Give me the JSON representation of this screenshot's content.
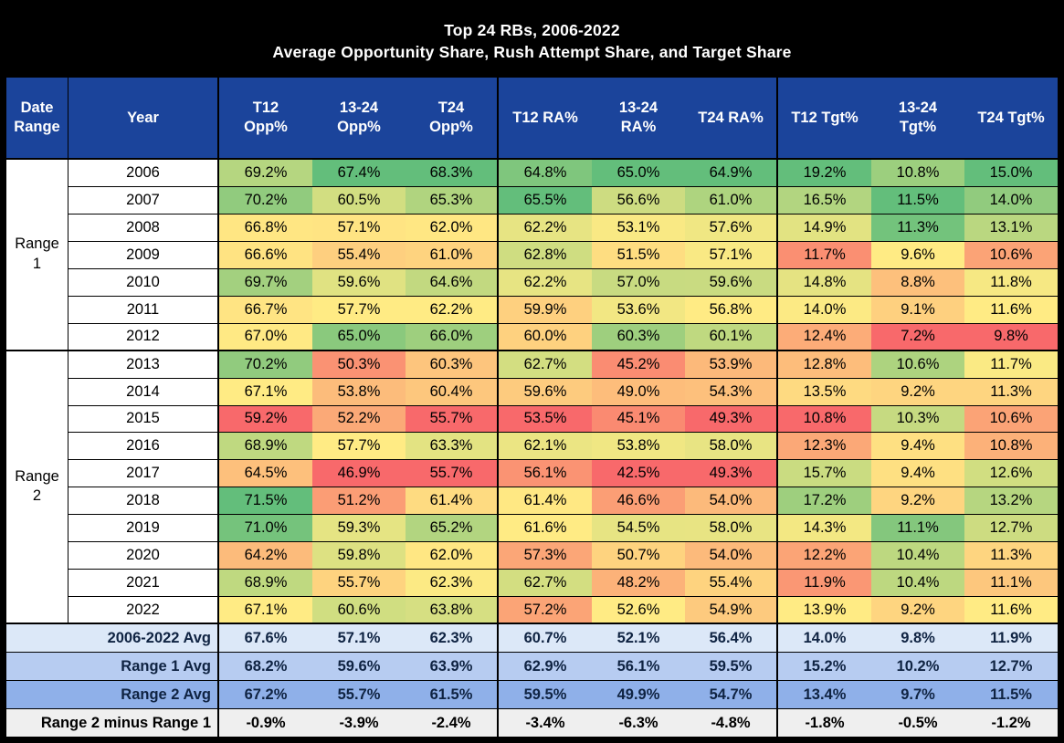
{
  "title": {
    "line1": "Top 24 RBs, 2006-2022",
    "line2": "Average Opportunity Share, Rush Attempt Share, and Target Share"
  },
  "chart_data": {
    "type": "heatmap-table",
    "columns_display": [
      "Date\nRange",
      "Year",
      "T12\nOpp%",
      "13-24\nOpp%",
      "T24\nOpp%",
      "T12 RA%",
      "13-24\nRA%",
      "T24 RA%",
      "T12 Tgt%",
      "13-24\nTgt%",
      "T24 Tgt%"
    ],
    "value_columns": [
      "T12 Opp%",
      "13-24 Opp%",
      "T24 Opp%",
      "T12 RA%",
      "13-24 RA%",
      "T24 RA%",
      "T12 Tgt%",
      "13-24 Tgt%",
      "T24 Tgt%"
    ],
    "unit": "%",
    "groups": [
      {
        "label": "Range 1",
        "label_display": "Range\n1",
        "rows": [
          {
            "year": "2006",
            "values": [
              69.2,
              67.4,
              68.3,
              64.8,
              65.0,
              64.9,
              19.2,
              10.8,
              15.0
            ]
          },
          {
            "year": "2007",
            "values": [
              70.2,
              60.5,
              65.3,
              65.5,
              56.6,
              61.0,
              16.5,
              11.5,
              14.0
            ]
          },
          {
            "year": "2008",
            "values": [
              66.8,
              57.1,
              62.0,
              62.2,
              53.1,
              57.6,
              14.9,
              11.3,
              13.1
            ]
          },
          {
            "year": "2009",
            "values": [
              66.6,
              55.4,
              61.0,
              62.8,
              51.5,
              57.1,
              11.7,
              9.6,
              10.6
            ]
          },
          {
            "year": "2010",
            "values": [
              69.7,
              59.6,
              64.6,
              62.2,
              57.0,
              59.6,
              14.8,
              8.8,
              11.8
            ]
          },
          {
            "year": "2011",
            "values": [
              66.7,
              57.7,
              62.2,
              59.9,
              53.6,
              56.8,
              14.0,
              9.1,
              11.6
            ]
          },
          {
            "year": "2012",
            "values": [
              67.0,
              65.0,
              66.0,
              60.0,
              60.3,
              60.1,
              12.4,
              7.2,
              9.8
            ]
          }
        ]
      },
      {
        "label": "Range 2",
        "label_display": "Range\n2",
        "rows": [
          {
            "year": "2013",
            "values": [
              70.2,
              50.3,
              60.3,
              62.7,
              45.2,
              53.9,
              12.8,
              10.6,
              11.7
            ]
          },
          {
            "year": "2014",
            "values": [
              67.1,
              53.8,
              60.4,
              59.6,
              49.0,
              54.3,
              13.5,
              9.2,
              11.3
            ]
          },
          {
            "year": "2015",
            "values": [
              59.2,
              52.2,
              55.7,
              53.5,
              45.1,
              49.3,
              10.8,
              10.3,
              10.6
            ]
          },
          {
            "year": "2016",
            "values": [
              68.9,
              57.7,
              63.3,
              62.1,
              53.8,
              58.0,
              12.3,
              9.4,
              10.8
            ]
          },
          {
            "year": "2017",
            "values": [
              64.5,
              46.9,
              55.7,
              56.1,
              42.5,
              49.3,
              15.7,
              9.4,
              12.6
            ]
          },
          {
            "year": "2018",
            "values": [
              71.5,
              51.2,
              61.4,
              61.4,
              46.6,
              54.0,
              17.2,
              9.2,
              13.2
            ]
          },
          {
            "year": "2019",
            "values": [
              71.0,
              59.3,
              65.2,
              61.6,
              54.5,
              58.0,
              14.3,
              11.1,
              12.7
            ]
          },
          {
            "year": "2020",
            "values": [
              64.2,
              59.8,
              62.0,
              57.3,
              50.7,
              54.0,
              12.2,
              10.4,
              11.3
            ]
          },
          {
            "year": "2021",
            "values": [
              68.9,
              55.7,
              62.3,
              62.7,
              48.2,
              55.4,
              11.9,
              10.4,
              11.1
            ]
          },
          {
            "year": "2022",
            "values": [
              67.1,
              60.6,
              63.8,
              57.2,
              52.6,
              54.9,
              13.9,
              9.2,
              11.6
            ]
          }
        ]
      }
    ],
    "summary_rows": [
      {
        "label": "2006-2022 Avg",
        "values": [
          67.6,
          57.1,
          62.3,
          60.7,
          52.1,
          56.4,
          14.0,
          9.8,
          11.9
        ]
      },
      {
        "label": "Range 1 Avg",
        "values": [
          68.2,
          59.6,
          63.9,
          62.9,
          56.1,
          59.5,
          15.2,
          10.2,
          12.7
        ]
      },
      {
        "label": "Range 2 Avg",
        "values": [
          67.2,
          55.7,
          61.5,
          59.5,
          49.9,
          54.7,
          13.4,
          9.7,
          11.5
        ]
      },
      {
        "label": "Range 2 minus Range 1",
        "values": [
          -0.9,
          -3.9,
          -2.4,
          -3.4,
          -6.3,
          -4.8,
          -1.8,
          -0.5,
          -1.2
        ]
      }
    ],
    "color_scale": {
      "applied": "per-column",
      "midpoint": "median",
      "min_color": "#F8696B",
      "mid_color": "#FFEB84",
      "max_color": "#63BE7B"
    }
  },
  "colors": {
    "title_bg": "#000000",
    "title_text": "#FFFFFF",
    "header_bg": "#1B449B",
    "header_text": "#FFFFFF",
    "border": "#000000",
    "row_bg": "#FFFFFF",
    "summary_row_bgs": [
      "#DCE8F8",
      "#B7CCF1",
      "#8FB0E9",
      "#EFEFEF"
    ],
    "summary_row_text": [
      "#0F2342",
      "#0F2342",
      "#0F2342",
      "#000000"
    ]
  }
}
